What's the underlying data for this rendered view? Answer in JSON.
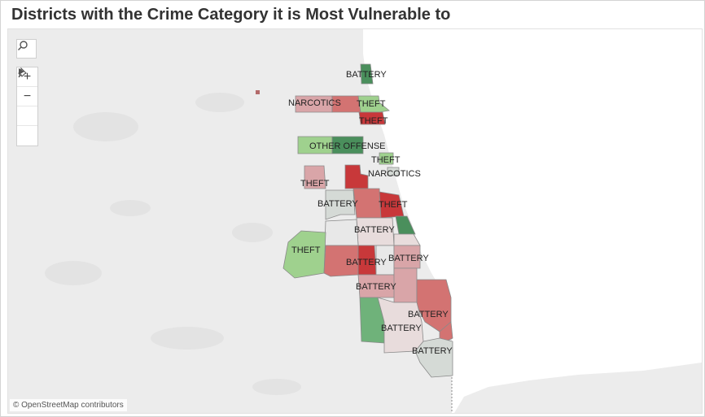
{
  "title": "Districts with the Crime Category it is Most Vulnerable to",
  "toolbar": {
    "search_icon": "search-icon",
    "zoom_in": "+",
    "zoom_out": "−",
    "pin_icon": "pin-icon",
    "expand_icon": "play-icon"
  },
  "attribution": "© OpenStreetMap contributors",
  "colors": {
    "dark_green": "#4a8f5c",
    "mid_green": "#6fb27a",
    "light_green": "#9fd18e",
    "dark_red": "#c8383a",
    "mid_red": "#d37372",
    "light_red": "#d9a5a8",
    "pale": "#e8dcdc",
    "neutral": "#d5dad6",
    "land": "#ececec",
    "water": "#ffffff"
  },
  "district_labels": [
    {
      "text": "BATTERY"
    },
    {
      "text": "NARCOTICS"
    },
    {
      "text": "THEFT"
    },
    {
      "text": "THEFT"
    },
    {
      "text": "OTHER OFFENSE"
    },
    {
      "text": "THEFT"
    },
    {
      "text": "NARCOTICS"
    },
    {
      "text": "THEFT"
    },
    {
      "text": "BATTERY"
    },
    {
      "text": "THEFT"
    },
    {
      "text": "BATTERY"
    },
    {
      "text": "THEFT"
    },
    {
      "text": "BATTERY"
    },
    {
      "text": "BATTERY"
    },
    {
      "text": "BATTERY"
    },
    {
      "text": "BATTERY"
    },
    {
      "text": "BATTERY"
    },
    {
      "text": "BATTERY"
    }
  ]
}
